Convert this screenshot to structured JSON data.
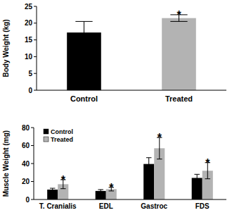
{
  "chart_data": [
    {
      "type": "bar",
      "y_label": "Body Weight (kg)",
      "categories": [
        "Control",
        "Treated"
      ],
      "values": [
        17.2,
        21.5
      ],
      "errors": [
        3.3,
        1.0
      ],
      "colors": [
        "#000000",
        "#b3b3b3"
      ],
      "ylim": [
        0,
        25
      ],
      "yticks": [
        0,
        5,
        10,
        15,
        20,
        25
      ],
      "annotations": [
        {
          "text": "*",
          "category": "Treated"
        }
      ]
    },
    {
      "type": "bar",
      "y_label": "Muscle Weight (mg)",
      "categories": [
        "T. Cranialis",
        "EDL",
        "Gastroc",
        "FDS"
      ],
      "series": [
        {
          "name": "Control",
          "color": "#000000",
          "values": [
            11,
            9.5,
            39.5,
            24
          ],
          "errors": [
            1.5,
            1.5,
            7,
            4
          ]
        },
        {
          "name": "Treated",
          "color": "#b3b3b3",
          "values": [
            17,
            11.5,
            57,
            32
          ],
          "errors": [
            5,
            2,
            12,
            9
          ]
        }
      ],
      "ylim": [
        0,
        80
      ],
      "yticks": [
        0,
        20,
        40,
        60,
        80
      ],
      "legend": "top-left",
      "annotations": [
        {
          "text": "*",
          "category": "T. Cranialis",
          "series": "Treated"
        },
        {
          "text": "*",
          "category": "EDL",
          "series": "Treated"
        },
        {
          "text": "*",
          "category": "Gastroc",
          "series": "Treated"
        },
        {
          "text": "*",
          "category": "FDS",
          "series": "Treated"
        }
      ]
    }
  ]
}
